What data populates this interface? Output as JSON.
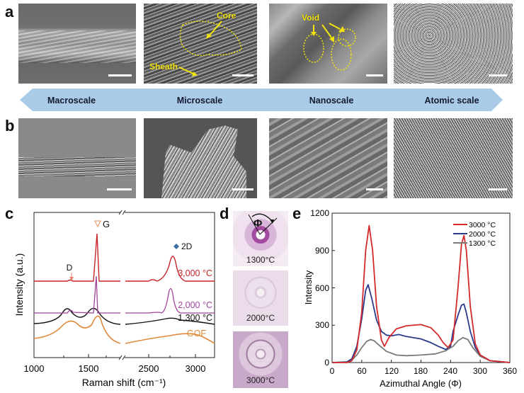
{
  "panels": {
    "a": {
      "letter": "a",
      "annotations": {
        "core": "Core",
        "sheath": "Sheath",
        "void": "Void"
      }
    },
    "b": {
      "letter": "b"
    },
    "c": {
      "letter": "c"
    },
    "d": {
      "letter": "d",
      "phi": "Φ",
      "tiles": [
        "1300°C",
        "2000°C",
        "3000°C"
      ]
    },
    "e": {
      "letter": "e"
    }
  },
  "scale_arrow": {
    "labels": [
      "Macroscale",
      "Microscale",
      "Nanoscale",
      "Atomic scale"
    ],
    "color": "#a9cbe8"
  },
  "chart_data": [
    {
      "panel": "c",
      "type": "line",
      "title": "",
      "xlabel": "Raman shift (cm⁻¹)",
      "ylabel": "Intensity (a.u.)",
      "xlim": [
        1000,
        3100
      ],
      "axis_break": [
        2000,
        2200
      ],
      "xticks": [
        1000,
        1500,
        2500,
        3000
      ],
      "peak_labels": [
        {
          "label": "D",
          "x": 1350,
          "marker": "arrow-down",
          "color": "#e8806a"
        },
        {
          "label": "G",
          "x": 1590,
          "marker": "triangle-down",
          "color": "#e8a070"
        },
        {
          "label": "2D",
          "x": 2700,
          "marker": "diamond",
          "color": "#3b6ea5"
        }
      ],
      "series": [
        {
          "name": "3,000 °C",
          "color": "#c8242b",
          "peaks": {
            "D": 0.02,
            "G": 1.0,
            "2D": 0.55
          }
        },
        {
          "name": "2,000 °C",
          "color": "#a0449a",
          "peaks": {
            "D": 0.08,
            "G": 0.95,
            "2D": 0.6
          }
        },
        {
          "name": "1,300 °C",
          "color": "#111111",
          "peaks": {
            "D": 0.35,
            "G": 0.4,
            "2D": 0.08
          }
        },
        {
          "name": "GOF",
          "color": "#e08a3c",
          "peaks": {
            "D": 0.35,
            "G": 0.5,
            "2D": 0.1
          }
        }
      ],
      "tick_labels": {
        "x": [
          "1000",
          "1500",
          "2500",
          "3000"
        ]
      }
    },
    {
      "panel": "e",
      "type": "line",
      "title": "",
      "xlabel": "Azimuthal Angle (Φ)",
      "ylabel": "Intensity",
      "xlim": [
        0,
        360
      ],
      "ylim": [
        0,
        1200
      ],
      "xticks": [
        0,
        60,
        120,
        180,
        240,
        300,
        360
      ],
      "yticks": [
        0,
        300,
        600,
        900,
        1200
      ],
      "legend_position": "upper right",
      "series": [
        {
          "name": "3000 °C",
          "color": "#d42a2a",
          "x": [
            0,
            30,
            40,
            50,
            60,
            68,
            75,
            82,
            90,
            100,
            106,
            115,
            130,
            150,
            180,
            200,
            215,
            225,
            235,
            245,
            255,
            262,
            267,
            272,
            280,
            290,
            300,
            320,
            360
          ],
          "y": [
            0,
            0,
            15,
            100,
            400,
            900,
            1100,
            900,
            450,
            180,
            130,
            200,
            270,
            295,
            305,
            280,
            220,
            160,
            120,
            180,
            600,
            950,
            1020,
            900,
            450,
            150,
            60,
            15,
            0
          ]
        },
        {
          "name": "2000 °C",
          "color": "#2a3b8c",
          "x": [
            0,
            30,
            40,
            50,
            60,
            68,
            73,
            80,
            90,
            100,
            110,
            120,
            135,
            150,
            180,
            200,
            215,
            230,
            240,
            245,
            255,
            262,
            267,
            272,
            280,
            290,
            300,
            320,
            360
          ],
          "y": [
            0,
            5,
            30,
            130,
            350,
            580,
            625,
            520,
            340,
            250,
            220,
            215,
            225,
            210,
            190,
            160,
            130,
            105,
            130,
            250,
            380,
            460,
            470,
            400,
            250,
            120,
            60,
            15,
            0
          ]
        },
        {
          "name": "1300 °C",
          "color": "#7a7a7a",
          "x": [
            0,
            30,
            40,
            50,
            60,
            70,
            78,
            85,
            95,
            110,
            130,
            150,
            180,
            210,
            230,
            245,
            255,
            265,
            275,
            285,
            300,
            320,
            360
          ],
          "y": [
            0,
            5,
            20,
            60,
            120,
            170,
            185,
            175,
            140,
            90,
            60,
            55,
            60,
            70,
            95,
            130,
            175,
            200,
            185,
            120,
            50,
            15,
            0
          ]
        }
      ],
      "tick_labels": {
        "x": [
          "0",
          "60",
          "120",
          "180",
          "240",
          "300",
          "360"
        ],
        "y": [
          "0",
          "300",
          "600",
          "900",
          "1200"
        ]
      }
    }
  ]
}
